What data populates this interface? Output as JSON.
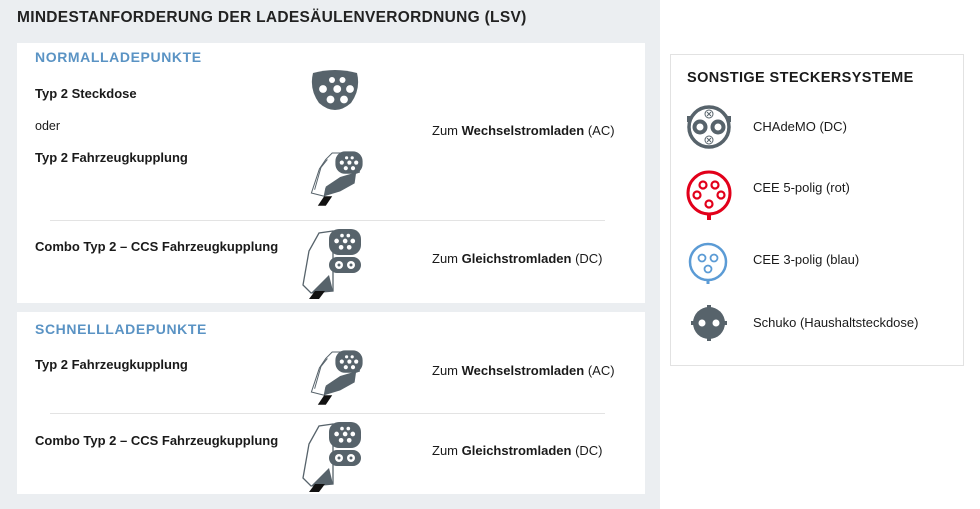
{
  "title": "MINDESTANFORDERUNG DER LADESÄULENVERORDNUNG (LSV)",
  "normal": {
    "heading": "NORMALLADEPUNKTE",
    "row1": {
      "label_a": "Typ 2 Steckdose",
      "or": "oder",
      "label_b": "Typ 2 Fahrzeugkupplung",
      "use_prefix": "Zum",
      "use_bold": "Wechselstromladen",
      "use_suffix": "(AC)"
    },
    "row2": {
      "label": "Combo Typ 2 – CCS Fahrzeugkupplung",
      "use_prefix": "Zum",
      "use_bold": "Gleichstromladen",
      "use_suffix": "(DC)"
    }
  },
  "fast": {
    "heading": "SCHNELLLADEPUNKTE",
    "row1": {
      "label": "Typ 2 Fahrzeugkupplung",
      "use_prefix": "Zum",
      "use_bold": "Wechselstromladen",
      "use_suffix": "(AC)"
    },
    "row2": {
      "label": "Combo Typ 2 – CCS Fahrzeugkupplung",
      "use_prefix": "Zum",
      "use_bold": "Gleichstromladen",
      "use_suffix": "(DC)"
    }
  },
  "other": {
    "heading": "SONSTIGE STECKERSYSTEME",
    "items": [
      {
        "label": "CHAdeMO (DC)",
        "icon": "chademo-icon",
        "color": "#57636b"
      },
      {
        "label": "CEE 5-polig (rot)",
        "icon": "cee5-icon",
        "color": "#e2001a"
      },
      {
        "label": "CEE 3-polig (blau)",
        "icon": "cee3-icon",
        "color": "#5b9bd5"
      },
      {
        "label": "Schuko (Haushaltsteckdose)",
        "icon": "schuko-icon",
        "color": "#57636b"
      }
    ]
  },
  "colors": {
    "accent": "#5a93c4",
    "icon_gray": "#57636b"
  }
}
